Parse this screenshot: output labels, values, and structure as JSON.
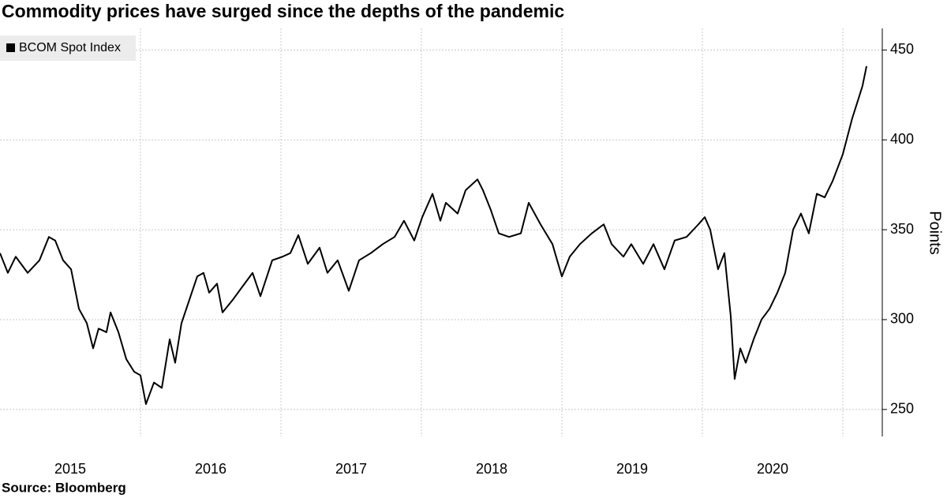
{
  "chart_data": {
    "type": "line",
    "title": "Commodity prices have surged since the depths of the pandemic",
    "source": "Source: Bloomberg",
    "y_axis_label": "Points",
    "x": [
      2015.0,
      2015.056,
      2015.112,
      2015.197,
      2015.281,
      2015.348,
      2015.393,
      2015.449,
      2015.506,
      2015.562,
      2015.618,
      2015.663,
      2015.702,
      2015.758,
      2015.787,
      2015.843,
      2015.899,
      2015.955,
      2016.0,
      2016.039,
      2016.096,
      2016.152,
      2016.208,
      2016.247,
      2016.292,
      2016.348,
      2016.404,
      2016.449,
      2016.489,
      2016.545,
      2016.584,
      2016.657,
      2016.713,
      2016.798,
      2016.854,
      2016.938,
      2017.011,
      2017.067,
      2017.124,
      2017.191,
      2017.275,
      2017.331,
      2017.404,
      2017.483,
      2017.556,
      2017.64,
      2017.725,
      2017.809,
      2017.876,
      2017.949,
      2018.006,
      2018.079,
      2018.135,
      2018.174,
      2018.258,
      2018.315,
      2018.399,
      2018.438,
      2018.494,
      2018.551,
      2018.624,
      2018.708,
      2018.764,
      2018.848,
      2018.933,
      2019.0,
      2019.056,
      2019.129,
      2019.213,
      2019.298,
      2019.354,
      2019.438,
      2019.494,
      2019.579,
      2019.652,
      2019.73,
      2019.803,
      2019.888,
      2019.972,
      2020.017,
      2020.056,
      2020.112,
      2020.157,
      2020.202,
      2020.23,
      2020.27,
      2020.309,
      2020.365,
      2020.421,
      2020.478,
      2020.534,
      2020.59,
      2020.646,
      2020.702,
      2020.758,
      2020.815,
      2020.871,
      2020.927,
      2021.0,
      2021.067,
      2021.112,
      2021.14,
      2021.169
    ],
    "series": [
      {
        "name": "BCOM Spot Index",
        "color": "#000000",
        "values": [
          337,
          326,
          335,
          326,
          333,
          346,
          344,
          333,
          328,
          306,
          298,
          284,
          295,
          293,
          304,
          293,
          278,
          271,
          269,
          253,
          265,
          262,
          289,
          276,
          298,
          311,
          324,
          326,
          315,
          320,
          304,
          311,
          317,
          326,
          313,
          333,
          335,
          337,
          347,
          331,
          340,
          326,
          333,
          316,
          333,
          337,
          342,
          346,
          355,
          344,
          357,
          370,
          355,
          365,
          359,
          372,
          378,
          372,
          361,
          348,
          346,
          348,
          365,
          353,
          342,
          324,
          335,
          342,
          348,
          353,
          342,
          335,
          342,
          331,
          342,
          328,
          344,
          346,
          353,
          357,
          350,
          328,
          337,
          302,
          267,
          284,
          276,
          289,
          300,
          306,
          315,
          326,
          350,
          359,
          348,
          370,
          368,
          377,
          392,
          412,
          423,
          430,
          441
        ]
      }
    ],
    "xlim": [
      2015.0,
      2021.281
    ],
    "xticks": [
      {
        "value": 2015.5,
        "label": "2015"
      },
      {
        "value": 2016.5,
        "label": "2016"
      },
      {
        "value": 2017.5,
        "label": "2017"
      },
      {
        "value": 2018.5,
        "label": "2018"
      },
      {
        "value": 2019.5,
        "label": "2019"
      },
      {
        "value": 2020.5,
        "label": "2020"
      }
    ],
    "xgrid": [
      2016,
      2017,
      2018,
      2019,
      2020,
      2021
    ],
    "ylim": [
      235,
      462
    ],
    "yticks": [
      250,
      300,
      350,
      400,
      450
    ],
    "grid": true,
    "legend": "top-left"
  }
}
